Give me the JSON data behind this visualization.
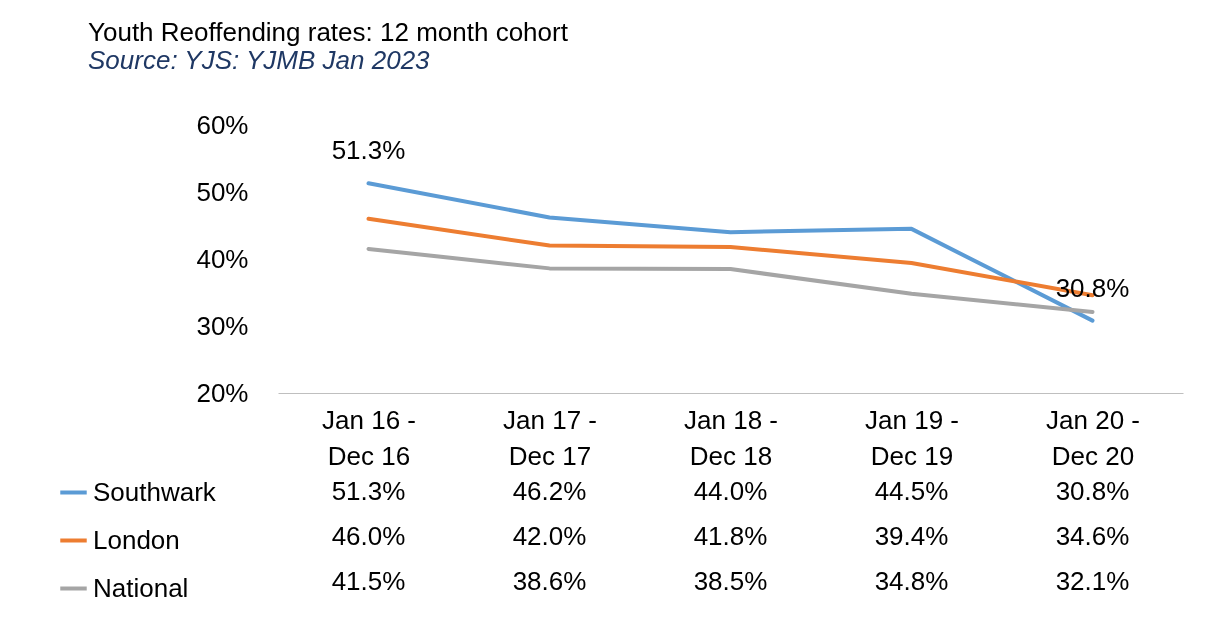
{
  "chart_data": {
    "type": "line",
    "title": "Youth Reoffending rates: 12 month cohort",
    "subtitle": "Source: YJS: YJMB Jan 2023",
    "categories": [
      "Jan 16 - Dec 16",
      "Jan 17 - Dec 17",
      "Jan 18 - Dec 18",
      "Jan 19 - Dec 19",
      "Jan 20 - Dec 20"
    ],
    "series": [
      {
        "name": "Southwark",
        "color": "#5b9bd5",
        "values": [
          51.3,
          46.2,
          44.0,
          44.5,
          30.8
        ],
        "value_labels": [
          "51.3%",
          "46.2%",
          "44.0%",
          "44.5%",
          "30.8%"
        ]
      },
      {
        "name": "London",
        "color": "#ed7d31",
        "values": [
          46.0,
          42.0,
          41.8,
          39.4,
          34.6
        ],
        "value_labels": [
          "46.0%",
          "42.0%",
          "41.8%",
          "39.4%",
          "34.6%"
        ]
      },
      {
        "name": "National",
        "color": "#a5a5a5",
        "values": [
          41.5,
          38.6,
          38.5,
          34.8,
          32.1
        ],
        "value_labels": [
          "41.5%",
          "38.6%",
          "38.5%",
          "34.8%",
          "32.1%"
        ]
      }
    ],
    "annotations": [
      {
        "text": "51.3%",
        "x": "Jan 16 - Dec 16",
        "y": 51.3
      },
      {
        "text": "30.8%",
        "x": "Jan 20 - Dec 20",
        "y": 30.8
      }
    ],
    "ylim": [
      20,
      60
    ],
    "yticks": [
      {
        "value": 20,
        "label": "20%"
      },
      {
        "value": 30,
        "label": "30%"
      },
      {
        "value": 40,
        "label": "40%"
      },
      {
        "value": 50,
        "label": "50%"
      },
      {
        "value": 60,
        "label": "60%"
      }
    ],
    "legend": "bottom left",
    "grid": false,
    "line_style": "solid",
    "marker": "none"
  }
}
